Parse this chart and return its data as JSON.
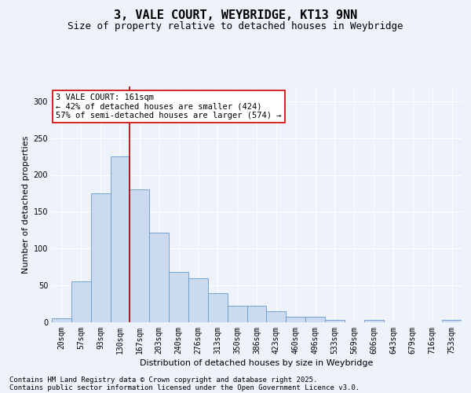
{
  "title": "3, VALE COURT, WEYBRIDGE, KT13 9NN",
  "subtitle": "Size of property relative to detached houses in Weybridge",
  "xlabel": "Distribution of detached houses by size in Weybridge",
  "ylabel": "Number of detached properties",
  "bar_color": "#ccdaf0",
  "bar_edge_color": "#6699cc",
  "background_color": "#eef2fa",
  "vline_color": "#aa0000",
  "vline_x_index": 3.5,
  "annotation_text_line1": "3 VALE COURT: 161sqm",
  "annotation_text_line2": "← 42% of detached houses are smaller (424)",
  "annotation_text_line3": "57% of semi-detached houses are larger (574) →",
  "annotation_box_color": "#ffffff",
  "annotation_box_edge": "#cc0000",
  "footnote1": "Contains HM Land Registry data © Crown copyright and database right 2025.",
  "footnote2": "Contains public sector information licensed under the Open Government Licence v3.0.",
  "categories": [
    "20sqm",
    "57sqm",
    "93sqm",
    "130sqm",
    "167sqm",
    "203sqm",
    "240sqm",
    "276sqm",
    "313sqm",
    "350sqm",
    "386sqm",
    "423sqm",
    "460sqm",
    "496sqm",
    "533sqm",
    "569sqm",
    "606sqm",
    "643sqm",
    "679sqm",
    "716sqm",
    "753sqm"
  ],
  "values": [
    5,
    55,
    175,
    225,
    180,
    122,
    68,
    60,
    40,
    22,
    22,
    15,
    8,
    8,
    3,
    0,
    3,
    0,
    0,
    0,
    3
  ],
  "ylim": [
    0,
    320
  ],
  "yticks": [
    0,
    50,
    100,
    150,
    200,
    250,
    300
  ],
  "title_fontsize": 11,
  "subtitle_fontsize": 9,
  "axis_label_fontsize": 8,
  "tick_fontsize": 7,
  "annotation_fontsize": 7.5,
  "footnote_fontsize": 6.5
}
